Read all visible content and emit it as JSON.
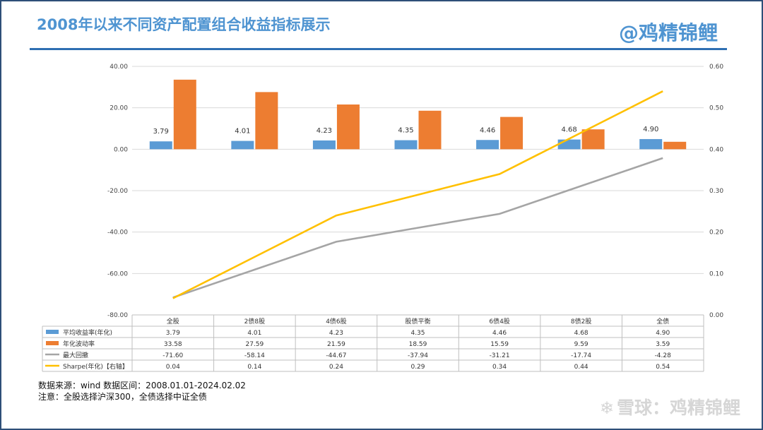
{
  "header": {
    "title": "2008年以来不同资产配置组合收益指标展示",
    "brand": "@鸡精锦鲤"
  },
  "notes": {
    "source": "数据来源：wind   数据区间：2008.01.01-2024.02.02",
    "remark": "注意：全股选择沪深300，全债选择中证全债"
  },
  "watermark": {
    "icon": "snowball-logo-icon",
    "text": "雪球：鸡精锦鲤"
  },
  "chart_data": {
    "type": "bar",
    "categories": [
      "全股",
      "2债8股",
      "4债6股",
      "股债平衡",
      "6债4股",
      "8债2股",
      "全债"
    ],
    "series": [
      {
        "name": "平均收益率(年化)",
        "kind": "bar",
        "axis": "left",
        "color": "#5b9bd5",
        "values": [
          3.79,
          4.01,
          4.23,
          4.35,
          4.46,
          4.68,
          4.9
        ],
        "labels": [
          "3.79",
          "4.01",
          "4.23",
          "4.35",
          "4.46",
          "4.68",
          "4.90"
        ]
      },
      {
        "name": "年化波动率",
        "kind": "bar",
        "axis": "left",
        "color": "#ed7d31",
        "values": [
          33.58,
          27.59,
          21.59,
          18.59,
          15.59,
          9.59,
          3.59
        ],
        "labels": [
          "33.58",
          "27.59",
          "21.59",
          "18.59",
          "15.59",
          "9.59",
          "3.59"
        ]
      },
      {
        "name": "最大回撤",
        "kind": "line",
        "axis": "left",
        "color": "#a5a5a5",
        "values": [
          -71.6,
          -58.14,
          -44.67,
          -37.94,
          -31.21,
          -17.74,
          -4.28
        ],
        "labels": [
          "-71.60",
          "-58.14",
          "-44.67",
          "-37.94",
          "-31.21",
          "-17.74",
          "-4.28"
        ]
      },
      {
        "name": "Sharpe(年化)【右轴】",
        "kind": "line",
        "axis": "right",
        "color": "#ffc000",
        "values": [
          0.04,
          0.14,
          0.24,
          0.29,
          0.34,
          0.44,
          0.54
        ],
        "labels": [
          "0.04",
          "0.14",
          "0.24",
          "0.29",
          "0.34",
          "0.44",
          "0.54"
        ]
      }
    ],
    "data_labels_series": 0,
    "ylim_left": [
      -80,
      40
    ],
    "yticks_left": [
      "40.00",
      "20.00",
      "0.00",
      "-20.00",
      "-40.00",
      "-60.00",
      "-80.00"
    ],
    "ylim_right": [
      0,
      0.6
    ],
    "yticks_right": [
      "0.60",
      "0.50",
      "0.40",
      "0.30",
      "0.20",
      "0.10",
      "0.00"
    ],
    "grid": true,
    "legend": "data-table-bottom"
  }
}
